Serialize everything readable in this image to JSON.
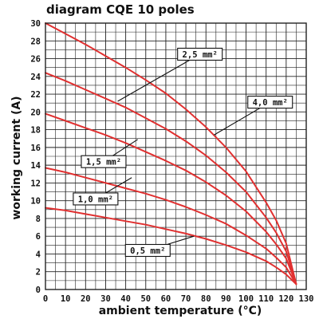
{
  "chart_data": {
    "type": "line",
    "title": "diagram CQE 10 poles",
    "xlabel": "ambient temperature (°C)",
    "ylabel": "working current (A)",
    "xlim": [
      0,
      130
    ],
    "ylim": [
      0,
      30
    ],
    "x_ticks": [
      0,
      10,
      20,
      30,
      40,
      50,
      60,
      70,
      80,
      90,
      100,
      110,
      120,
      130
    ],
    "y_ticks": [
      0,
      2,
      4,
      6,
      8,
      10,
      12,
      14,
      16,
      18,
      20,
      22,
      24,
      26,
      28,
      30
    ],
    "grid": true,
    "series": [
      {
        "name": "2,5 mm²",
        "color": "#e03030",
        "x": [
          0,
          10,
          20,
          30,
          40,
          50,
          60,
          70,
          80,
          90,
          100,
          110,
          115,
          120,
          125
        ],
        "y": [
          30.0,
          28.8,
          27.6,
          26.3,
          25.0,
          23.6,
          22.1,
          20.3,
          18.3,
          16.0,
          13.3,
          9.8,
          7.8,
          5.2,
          0.6
        ]
      },
      {
        "name": "4,0 mm²",
        "color": "#e03030",
        "x": [
          0,
          10,
          20,
          30,
          40,
          50,
          60,
          70,
          80,
          90,
          100,
          110,
          115,
          120,
          125
        ],
        "y": [
          24.4,
          23.5,
          22.5,
          21.5,
          20.5,
          19.3,
          18.1,
          16.7,
          15.1,
          13.2,
          11.0,
          8.1,
          6.4,
          4.3,
          0.6
        ]
      },
      {
        "name": "1,5 mm²",
        "color": "#e03030",
        "x": [
          0,
          10,
          20,
          30,
          40,
          50,
          60,
          70,
          80,
          90,
          100,
          110,
          115,
          120,
          125
        ],
        "y": [
          19.8,
          19.0,
          18.2,
          17.4,
          16.5,
          15.5,
          14.5,
          13.4,
          12.1,
          10.6,
          8.8,
          6.5,
          5.1,
          3.5,
          0.6
        ]
      },
      {
        "name": "1,0 mm²",
        "color": "#e03030",
        "x": [
          0,
          10,
          20,
          30,
          40,
          50,
          60,
          70,
          80,
          90,
          100,
          110,
          115,
          120,
          125
        ],
        "y": [
          13.7,
          13.2,
          12.6,
          12.0,
          11.4,
          10.8,
          10.1,
          9.3,
          8.4,
          7.4,
          6.1,
          4.6,
          3.6,
          2.5,
          0.6
        ]
      },
      {
        "name": "0,5 mm²",
        "color": "#e03030",
        "x": [
          0,
          10,
          20,
          30,
          40,
          50,
          60,
          70,
          80,
          90,
          100,
          110,
          115,
          120,
          125
        ],
        "y": [
          9.2,
          8.9,
          8.5,
          8.1,
          7.7,
          7.3,
          6.8,
          6.3,
          5.7,
          5.0,
          4.2,
          3.2,
          2.5,
          1.7,
          0.6
        ]
      }
    ],
    "annotations": [
      {
        "text": "2,5 mm²",
        "series": "2,5 mm²",
        "label_at": [
          77,
          26.5
        ],
        "arrow_to": [
          36,
          21.2
        ]
      },
      {
        "text": "4,0 mm²",
        "series": "4,0 mm²",
        "label_at": [
          112,
          21.1
        ],
        "arrow_to": [
          84,
          17.4
        ]
      },
      {
        "text": "1,5 mm²",
        "series": "1,5 mm²",
        "label_at": [
          29,
          14.4
        ],
        "arrow_to": [
          46,
          16.9
        ]
      },
      {
        "text": "1,0 mm²",
        "series": "1,0 mm²",
        "label_at": [
          25,
          10.2
        ],
        "arrow_to": [
          43,
          12.6
        ]
      },
      {
        "text": "0,5 mm²",
        "series": "0,5 mm²",
        "label_at": [
          51,
          4.4
        ],
        "arrow_to": [
          74,
          6.0
        ]
      }
    ]
  }
}
